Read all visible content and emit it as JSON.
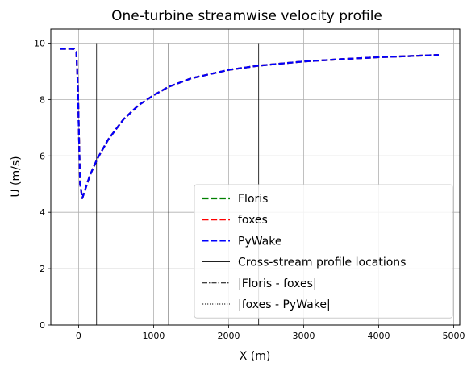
{
  "chart_data": {
    "type": "line",
    "title": "One-turbine streamwise velocity profile",
    "xlabel": "X (m)",
    "ylabel": "U (m/s)",
    "xlim": [
      -370,
      5080
    ],
    "ylim": [
      0,
      10.5
    ],
    "xticks": [
      0,
      1000,
      2000,
      3000,
      4000,
      5000
    ],
    "xtick_labels": [
      "0",
      "1000",
      "2000",
      "3000",
      "4000",
      "5000"
    ],
    "yticks": [
      0,
      2,
      4,
      6,
      8,
      10
    ],
    "ytick_labels": [
      "0",
      "2",
      "4",
      "6",
      "8",
      "10"
    ],
    "grid": true,
    "legend_position": "lower-right",
    "series": [
      {
        "name": "Floris",
        "color": "#008000",
        "style": "dashed",
        "x": [
          -250,
          -100,
          -60,
          -30,
          -10,
          20,
          50,
          100,
          150,
          250,
          400,
          600,
          800,
          1000,
          1200,
          1500,
          2000,
          2400,
          3000,
          3500,
          4000,
          4500,
          4800
        ],
        "y": [
          9.8,
          9.8,
          9.79,
          9.7,
          8.5,
          5.0,
          4.5,
          4.9,
          5.3,
          5.9,
          6.6,
          7.3,
          7.8,
          8.15,
          8.45,
          8.75,
          9.05,
          9.2,
          9.35,
          9.43,
          9.5,
          9.55,
          9.58
        ]
      },
      {
        "name": "foxes",
        "color": "#ff0000",
        "style": "dashed",
        "x": [
          -250,
          -100,
          -60,
          -30,
          -10,
          20,
          50,
          100,
          150,
          250,
          400,
          600,
          800,
          1000,
          1200,
          1500,
          2000,
          2400,
          3000,
          3500,
          4000,
          4500,
          4800
        ],
        "y": [
          9.8,
          9.8,
          9.79,
          9.7,
          8.5,
          5.0,
          4.5,
          4.9,
          5.3,
          5.9,
          6.6,
          7.3,
          7.8,
          8.15,
          8.45,
          8.75,
          9.05,
          9.2,
          9.35,
          9.43,
          9.5,
          9.55,
          9.58
        ]
      },
      {
        "name": "PyWake",
        "color": "#0000ff",
        "style": "dashed",
        "x": [
          -250,
          -100,
          -60,
          -30,
          -10,
          20,
          50,
          100,
          150,
          250,
          400,
          600,
          800,
          1000,
          1200,
          1500,
          2000,
          2400,
          3000,
          3500,
          4000,
          4500,
          4800
        ],
        "y": [
          9.8,
          9.8,
          9.79,
          9.7,
          8.5,
          5.0,
          4.5,
          4.9,
          5.3,
          5.9,
          6.6,
          7.3,
          7.8,
          8.15,
          8.45,
          8.75,
          9.05,
          9.2,
          9.35,
          9.43,
          9.5,
          9.55,
          9.58
        ]
      },
      {
        "name": "|Floris - foxes|",
        "color": "#000000",
        "style": "dashdot",
        "x": [
          -250,
          4800
        ],
        "y": [
          0.0,
          0.0
        ]
      },
      {
        "name": "|foxes - PyWake|",
        "color": "#000000",
        "style": "dotted",
        "x": [
          -250,
          4800
        ],
        "y": [
          0.0,
          0.0
        ]
      }
    ],
    "vlines": {
      "name": "Cross-stream profile locations",
      "color": "#000000",
      "x": [
        240,
        1200,
        2400
      ],
      "ymin": 0,
      "ymax": 10
    }
  }
}
